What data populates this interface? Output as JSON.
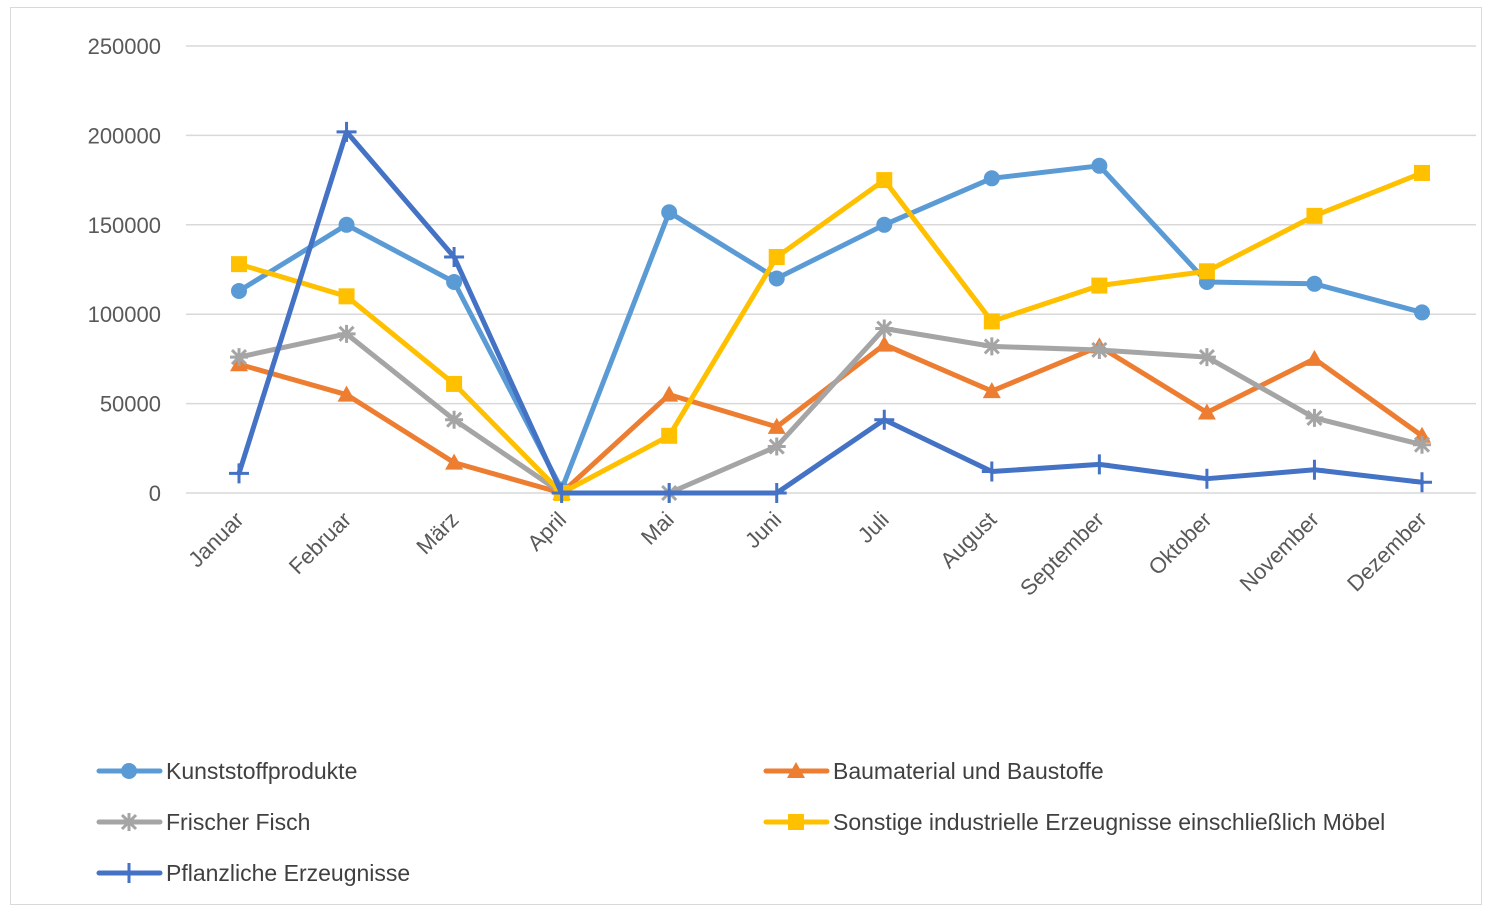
{
  "chart_data": {
    "type": "line",
    "title": "",
    "xlabel": "",
    "ylabel": "",
    "ylim": [
      0,
      250000
    ],
    "yticks": [
      0,
      50000,
      100000,
      150000,
      200000,
      250000
    ],
    "ytick_labels": [
      "0",
      "50000",
      "100000",
      "150000",
      "200000",
      "250000"
    ],
    "grid": "horizontal",
    "legend": "bottom",
    "categories": [
      "Januar",
      "Februar",
      "März",
      "April",
      "Mai",
      "Juni",
      "Juli",
      "August",
      "September",
      "Oktober",
      "November",
      "Dezember"
    ],
    "series": [
      {
        "name": "Kunststoffprodukte",
        "color": "#5b9bd5",
        "marker": "circle",
        "values": [
          113000,
          150000,
          118000,
          2000,
          157000,
          120000,
          150000,
          176000,
          183000,
          118000,
          117000,
          101000
        ]
      },
      {
        "name": "Baumaterial und Baustoffe",
        "color": "#ed7d31",
        "marker": "triangle",
        "values": [
          72000,
          55000,
          17000,
          0,
          55000,
          37000,
          83000,
          57000,
          82000,
          45000,
          75000,
          32000
        ]
      },
      {
        "name": "Frischer Fisch",
        "color": "#a5a5a5",
        "marker": "star",
        "values": [
          76000,
          89000,
          41000,
          0,
          0,
          26000,
          92000,
          82000,
          80000,
          76000,
          42000,
          27000
        ]
      },
      {
        "name": "Sonstige industrielle Erzeugnisse einschließlich Möbel",
        "color": "#ffc000",
        "marker": "square",
        "values": [
          128000,
          110000,
          61000,
          0,
          32000,
          132000,
          175000,
          96000,
          116000,
          124000,
          155000,
          179000
        ]
      },
      {
        "name": "Pflanzliche Erzeugnisse",
        "color": "#4472c4",
        "marker": "plus",
        "values": [
          11000,
          202000,
          132000,
          0,
          0,
          0,
          41000,
          12000,
          16000,
          8000,
          13000,
          6000
        ]
      }
    ]
  }
}
